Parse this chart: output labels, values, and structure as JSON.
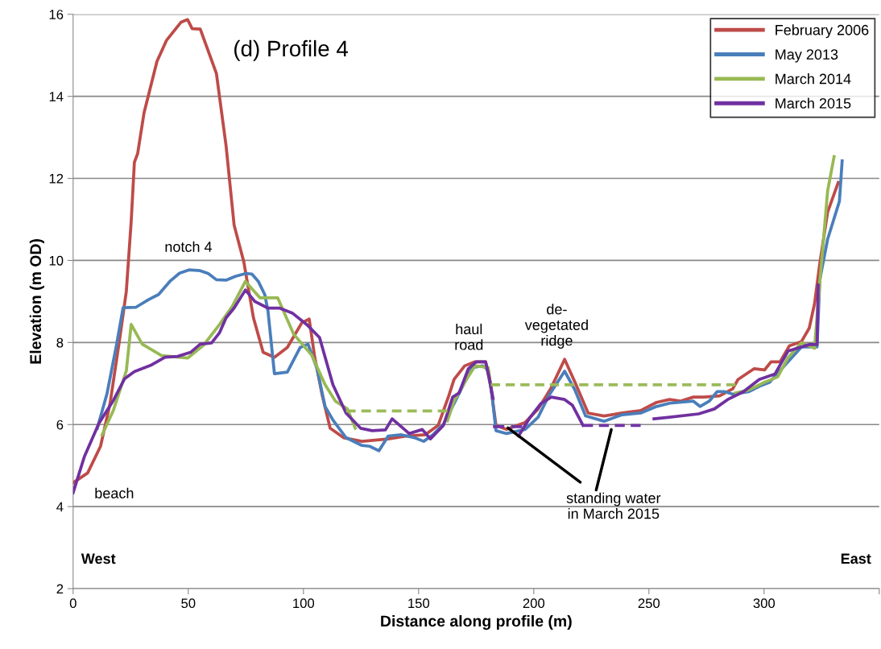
{
  "chart_data": {
    "type": "line",
    "title": "(d) Profile 4",
    "xlabel": "Distance along profile (m)",
    "ylabel": "Elevation (m OD)",
    "xlim": [
      0,
      350
    ],
    "xticks": [
      0,
      50,
      100,
      150,
      200,
      250,
      300,
      {
        "value": 350,
        "label": null
      }
    ],
    "ylim": [
      2,
      16
    ],
    "yticks": [
      2,
      4,
      6,
      8,
      10,
      12,
      14,
      16
    ],
    "grid": "y",
    "legend": "top right",
    "line_style": "solid",
    "marker": "none",
    "series": [
      {
        "name": "February 2006",
        "color": "#be4b48",
        "x": [
          0,
          6.3,
          11.9,
          16,
          20.3,
          23.1,
          25.2,
          26.6,
          28,
          30.8,
          36.4,
          40.6,
          46.9,
          49.7,
          51.7,
          55.2,
          62.2,
          66.4,
          69.9,
          74.1,
          78.3,
          82.5,
          87.4,
          93,
          99.3,
          102.5,
          104.9,
          108.2,
          111.6,
          117.4,
          125.4,
          136.8,
          144.8,
          152.8,
          158.5,
          163.1,
          165.4,
          170,
          174.5,
          179.1,
          181.4,
          183.6,
          188.2,
          196.2,
          201.9,
          207.6,
          213.4,
          217.9,
          223.6,
          230.5,
          238.4,
          246.4,
          253.3,
          259,
          263.6,
          269.3,
          273.9,
          280.7,
          286.4,
          288.7,
          295.6,
          300.2,
          303,
          307,
          311,
          316.2,
          319.6,
          321.9,
          324.2,
          327.6,
          332.2
        ],
        "values": [
          4.58,
          4.82,
          5.47,
          6.5,
          8.12,
          9.25,
          10.94,
          12.39,
          12.6,
          13.6,
          14.85,
          15.37,
          15.81,
          15.87,
          15.65,
          15.64,
          14.56,
          12.8,
          10.86,
          9.97,
          8.6,
          7.76,
          7.64,
          7.88,
          8.48,
          8.57,
          7.64,
          6.7,
          5.91,
          5.68,
          5.59,
          5.65,
          5.72,
          5.75,
          5.98,
          6.7,
          7.1,
          7.43,
          7.53,
          7.53,
          6.9,
          5.98,
          5.88,
          6.05,
          6.38,
          6.9,
          7.59,
          7.03,
          6.28,
          6.21,
          6.28,
          6.34,
          6.54,
          6.61,
          6.57,
          6.67,
          6.67,
          6.7,
          6.87,
          7.1,
          7.36,
          7.33,
          7.53,
          7.53,
          7.92,
          8.02,
          8.35,
          8.94,
          9.93,
          11.18,
          11.9
        ]
      },
      {
        "name": "May 2013",
        "color": "#4a7ebb",
        "x": [
          10.5,
          14.7,
          18.9,
          21.7,
          27.3,
          32.9,
          37.1,
          42,
          46.2,
          50.3,
          55.2,
          58.7,
          62.2,
          66.4,
          70.4,
          74.8,
          77.6,
          80.4,
          83.2,
          84.6,
          87.4,
          93,
          98.6,
          102,
          105.9,
          109.4,
          112.8,
          118.5,
          125.4,
          128.8,
          132.8,
          136.8,
          142.5,
          148.2,
          152.2,
          156.2,
          160.8,
          165.4,
          170,
          173.4,
          177.9,
          180.2,
          181.9,
          183.6,
          188.2,
          196.2,
          201.9,
          206.5,
          213.4,
          217.9,
          222.5,
          230.5,
          238.4,
          246.4,
          253.3,
          259,
          269.3,
          272.2,
          276.2,
          279.6,
          283,
          286.4,
          293.3,
          297.9,
          302.4,
          309.3,
          316.2,
          323,
          324.2,
          327.6,
          332.7,
          333.9
        ],
        "values": [
          5.91,
          6.75,
          7.96,
          8.85,
          8.86,
          9.05,
          9.17,
          9.49,
          9.69,
          9.77,
          9.75,
          9.68,
          9.53,
          9.52,
          9.61,
          9.68,
          9.67,
          9.49,
          9.17,
          8.77,
          7.24,
          7.28,
          7.88,
          7.96,
          7.36,
          6.44,
          6.11,
          5.68,
          5.49,
          5.47,
          5.36,
          5.72,
          5.75,
          5.68,
          5.59,
          5.75,
          6.01,
          6.51,
          7.03,
          7.39,
          7.43,
          7.33,
          6.7,
          5.85,
          5.78,
          5.88,
          6.18,
          6.7,
          7.3,
          6.84,
          6.21,
          6.08,
          6.24,
          6.28,
          6.44,
          6.52,
          6.57,
          6.44,
          6.57,
          6.8,
          6.8,
          6.74,
          6.8,
          6.93,
          7.03,
          7.46,
          7.89,
          7.89,
          9.53,
          10.52,
          11.44,
          12.43
        ]
      },
      {
        "name": "March 2014",
        "color": "#98b954",
        "x": [
          12.6,
          17.5,
          23.1,
          25.2,
          30,
          38.4,
          49.7,
          56.6,
          63.6,
          69.2,
          74.8,
          81.1,
          88.8,
          95.8,
          103.6,
          109.4,
          113.9,
          119.1,
          122.5,
          140,
          162.5,
          165.4,
          170,
          174.5,
          180.2,
          181.4,
          240,
          287.6,
          293.3,
          300.2,
          305.9,
          310.4,
          316.2,
          321.9,
          324.2,
          327.6,
          330.4
        ],
        "values": [
          5.75,
          6.35,
          7.31,
          8.44,
          7.96,
          7.68,
          7.62,
          7.93,
          8.44,
          8.89,
          9.49,
          9.09,
          9.09,
          8.2,
          7.69,
          6.97,
          6.57,
          6.38,
          5.91,
          null,
          6.09,
          6.57,
          7.03,
          7.43,
          7.39,
          6.93,
          null,
          6.77,
          6.84,
          7.03,
          7.16,
          7.63,
          7.99,
          7.86,
          9.46,
          11.7,
          12.53
        ]
      },
      {
        "name": "March 2015",
        "color": "#7030a0",
        "x": [
          0,
          4.9,
          11.2,
          17.5,
          22.4,
          26.6,
          33.6,
          39.9,
          45.4,
          51,
          55.2,
          60.1,
          63.6,
          66.4,
          69.9,
          74.8,
          78.9,
          84.5,
          89.5,
          95.1,
          101.4,
          107,
          112.8,
          118.5,
          124.8,
          129.9,
          135.6,
          138.5,
          145.9,
          151.6,
          155.1,
          160.8,
          164.8,
          167.6,
          171.6,
          175.1,
          179.1,
          180.8,
          182.3,
          188,
          193.4,
          198.5,
          203.1,
          207.6,
          213.4,
          216.8,
          221.4,
          235,
          252.2,
          259,
          271.6,
          278.4,
          284.2,
          291,
          297.9,
          304.7,
          310.4,
          319.6,
          323,
          323.5
        ],
        "values": [
          4.34,
          5.22,
          6.03,
          6.59,
          7.12,
          7.29,
          7.44,
          7.64,
          7.66,
          7.76,
          7.96,
          7.99,
          8.24,
          8.6,
          8.84,
          9.28,
          9,
          8.84,
          8.84,
          8.72,
          8.44,
          8.12,
          6.97,
          6.28,
          5.91,
          5.85,
          5.87,
          6.14,
          5.78,
          5.88,
          5.65,
          5.98,
          6.67,
          6.77,
          7.36,
          7.53,
          7.53,
          7.1,
          6.64,
          null,
          5.72,
          6.18,
          6.51,
          6.67,
          6.61,
          6.47,
          5.98,
          null,
          6.14,
          6.18,
          6.26,
          6.38,
          6.61,
          6.8,
          7.1,
          7.23,
          7.79,
          7.95,
          7.95,
          9.4
        ]
      },
      {
        "color": "#9bbb59",
        "line_style": "dashed",
        "x": [
          118.5,
          162.5
        ],
        "values": [
          6.33,
          6.33
        ]
      },
      {
        "color": "#9bbb59",
        "line_style": "dashed",
        "x": [
          181.4,
          287.6
        ],
        "values": [
          6.97,
          6.97
        ]
      },
      {
        "color": "#7434a4",
        "line_style": "dashed",
        "x": [
          182.3,
          195
        ],
        "values": [
          5.95,
          5.95
        ]
      },
      {
        "color": "#7434a4",
        "line_style": "dashed",
        "x": [
          221.4,
          246.4
        ],
        "values": [
          5.98,
          5.98
        ]
      }
    ],
    "annotations": [
      "notch 4",
      "beach",
      "haul\nroad",
      "de-\nvegetated\nridge",
      {
        "text": "standing water\nin March 2015",
        "x": 188,
        "y": 5.95
      },
      "West",
      "East"
    ]
  }
}
